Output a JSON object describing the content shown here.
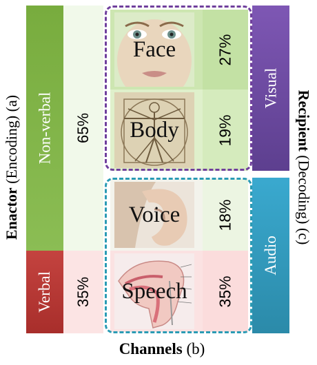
{
  "left_axis": {
    "bold": "Enactor",
    "rest": " (Encoding) (a)"
  },
  "right_axis": {
    "bold": "Recipient",
    "rest": " (Decoding) (c)"
  },
  "bottom_axis": {
    "bold": "Channels",
    "rest": " (b)"
  },
  "categories": [
    {
      "label": "Non-verbal",
      "percent": "65%",
      "color": "#7fb244"
    },
    {
      "label": "Verbal",
      "percent": "35%",
      "color": "#b8393a"
    }
  ],
  "channels": [
    {
      "name": "Face",
      "percent": "27%",
      "icon": "face-photo"
    },
    {
      "name": "Body",
      "percent": "19%",
      "icon": "vitruvian-man-sketch"
    },
    {
      "name": "Voice",
      "percent": "18%",
      "icon": "ear-hand-photo"
    },
    {
      "name": "Speech",
      "percent": "35%",
      "icon": "vocal-tract-diagram"
    }
  ],
  "recipients": [
    {
      "label": "Visual",
      "color": "#6d4aa3"
    },
    {
      "label": "Audio",
      "color": "#3399c0"
    }
  ]
}
